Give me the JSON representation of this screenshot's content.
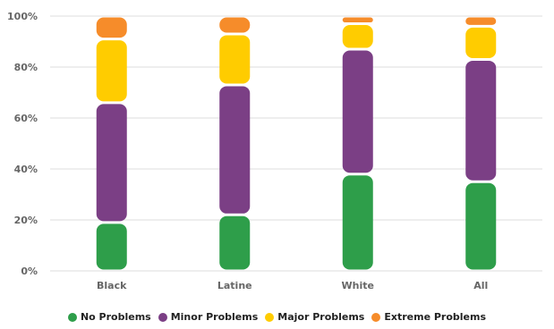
{
  "chart_data": {
    "type": "bar",
    "stacked": true,
    "categories": [
      "Black",
      "Latine",
      "White",
      "All"
    ],
    "series": [
      {
        "name": "No Problems",
        "color": "#2e9e4a",
        "values": [
          19,
          22,
          38,
          35
        ]
      },
      {
        "name": "Minor Problems",
        "color": "#7b3f85",
        "values": [
          47,
          51,
          49,
          48
        ]
      },
      {
        "name": "Major Problems",
        "color": "#ffcc00",
        "values": [
          25,
          20,
          10,
          13
        ]
      },
      {
        "name": "Extreme Problems",
        "color": "#f68c2a",
        "values": [
          9,
          7,
          3,
          4
        ]
      }
    ],
    "ylim": [
      0,
      100
    ],
    "yticks": [
      "0%",
      "20%",
      "40%",
      "60%",
      "80%",
      "100%"
    ],
    "grid": true,
    "legend_position": "bottom"
  }
}
